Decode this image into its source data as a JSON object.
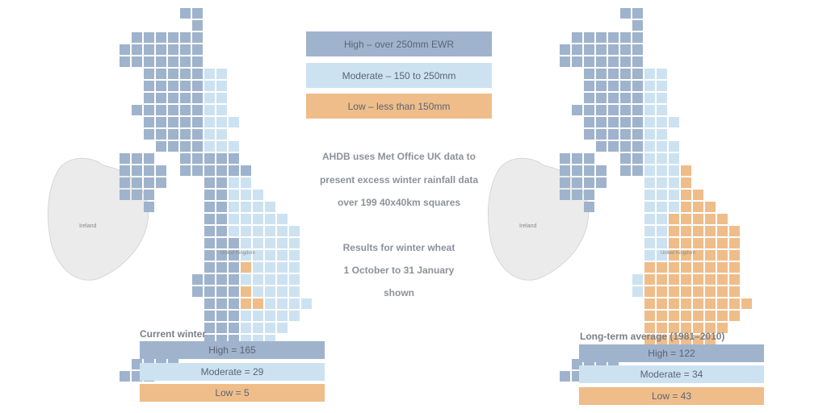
{
  "colors": {
    "high": "#9fb3cc",
    "moderate": "#cde2f1",
    "low": "#efbd8a",
    "land": "#ebebeb"
  },
  "legend": {
    "high": "High – over 250mm EWR",
    "moderate": "Moderate – 150 to 250mm",
    "low": "Low – less than 150mm"
  },
  "info": {
    "line1": "AHDB uses Met Office UK data to",
    "line2": "present excess winter rainfall data",
    "line3": "over 199 40x40km squares",
    "line4": "Results for winter wheat",
    "line5": "1 October to 31 January",
    "line6": "shown"
  },
  "maps": {
    "ireland_label": "Ireland",
    "uk_label": "United Kingdom"
  },
  "current": {
    "title": "Current winter",
    "high": "High = 165",
    "moderate": "Moderate = 29",
    "low": "Low = 5",
    "counts": {
      "high": 165,
      "moderate": 29,
      "low": 5
    }
  },
  "longterm": {
    "title": "Long-term average (1981–2010)",
    "high": "High = 122",
    "moderate": "Moderate = 34",
    "low": "Low = 43",
    "counts": {
      "high": 122,
      "moderate": 34,
      "low": 43
    }
  }
}
